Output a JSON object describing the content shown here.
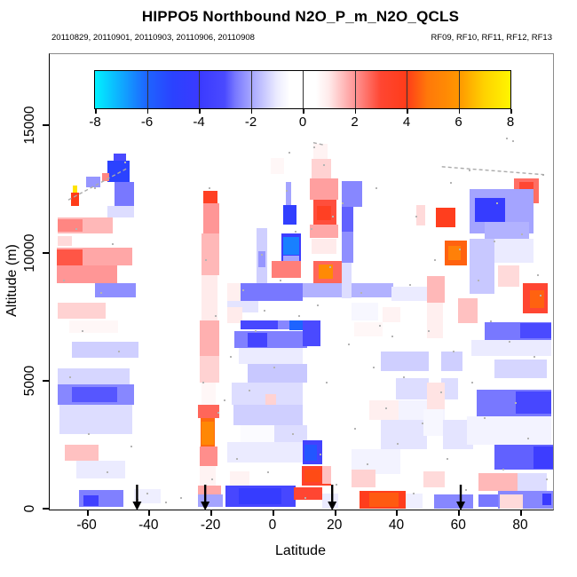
{
  "title": "HIPPO5 Northbound N2O_P_m_N2O_QCLS",
  "subtitle_left": "20110829, 20110901, 20110903, 20110906, 20110908",
  "subtitle_right": "RF09, RF10, RF11, RF12, RF13",
  "axes": {
    "x": {
      "label": "Latitude",
      "ticks": [
        -60,
        -40,
        -20,
        0,
        20,
        40,
        60,
        80
      ],
      "range": [
        -72.2,
        90.3
      ]
    },
    "y": {
      "label": "Altitude (m)",
      "ticks": [
        0,
        5000,
        10000,
        15000
      ],
      "range": [
        0,
        17800
      ]
    }
  },
  "colorbar": {
    "ticks": [
      -8,
      -6,
      -4,
      -2,
      0,
      2,
      4,
      6,
      8
    ],
    "range": [
      -8,
      8
    ],
    "value_stops": [
      [
        -8,
        "#00F2FF"
      ],
      [
        -6,
        "#1E64FF"
      ],
      [
        -5,
        "#2B42FF"
      ],
      [
        -4,
        "#3A3AFF"
      ],
      [
        -3,
        "#4A4AFF"
      ],
      [
        -2.6,
        "#7878FF"
      ],
      [
        -2.2,
        "#9696FF"
      ],
      [
        -1,
        "#EBEBFF"
      ],
      [
        -0.5,
        "#FFFFFF"
      ],
      [
        0.5,
        "#FFFFFF"
      ],
      [
        1,
        "#FFEBEB"
      ],
      [
        2,
        "#FF9696"
      ],
      [
        2.5,
        "#FF6E64"
      ],
      [
        3,
        "#FF4632"
      ],
      [
        4,
        "#FF3C19"
      ],
      [
        4.8,
        "#FF780A"
      ],
      [
        6,
        "#FF9600"
      ],
      [
        7,
        "#FFD200"
      ],
      [
        8,
        "#FFF500"
      ]
    ]
  },
  "chart_data": {
    "type": "heatmap",
    "title": "HIPPO5 Northbound N2O_P_m_N2O_QCLS",
    "xlabel": "Latitude",
    "ylabel": "Altitude (m)",
    "value_scale": [
      -8,
      8
    ],
    "arrows_lat": [
      -44,
      -22,
      19,
      60.5
    ],
    "track_lines": [
      [
        -66.2,
        12100,
        -47.3,
        13330
      ],
      [
        54.4,
        13400,
        87.4,
        13090
      ],
      [
        12.9,
        14340,
        16.6,
        14240
      ]
    ],
    "cells": [
      [
        -53.6,
        -46.4,
        12800,
        13650,
        -5
      ],
      [
        -51.5,
        -47.5,
        13650,
        13900,
        -3
      ],
      [
        -60.5,
        -55.9,
        12600,
        13000,
        -2.2
      ],
      [
        -55.3,
        -53,
        12850,
        13150,
        2.2
      ],
      [
        -64.8,
        -63.3,
        12400,
        12670,
        7.5
      ],
      [
        -65.3,
        -62.8,
        11850,
        12400,
        4
      ],
      [
        -51.3,
        -45,
        11850,
        12800,
        -2.6
      ],
      [
        -53.6,
        -45,
        11400,
        11850,
        -1.2
      ],
      [
        -69.6,
        -51.9,
        10800,
        11400,
        1.6
      ],
      [
        -69.6,
        -61.5,
        10850,
        11350,
        2.2
      ],
      [
        -69.6,
        -65,
        10300,
        10700,
        1.2
      ],
      [
        -70,
        -45.6,
        9550,
        10250,
        1.8
      ],
      [
        -70,
        -61.5,
        9100,
        10150,
        2.8
      ],
      [
        -70,
        -50.5,
        8850,
        9550,
        2
      ],
      [
        -57.6,
        -44.4,
        8300,
        8850,
        -2.3
      ],
      [
        -69.6,
        -54.2,
        7450,
        8100,
        1.3
      ],
      [
        -66,
        -50,
        6900,
        7400,
        0.7
      ],
      [
        -65,
        -43.5,
        5950,
        6550,
        -1.4
      ],
      [
        -69.6,
        -46.5,
        4900,
        5500,
        -1.3
      ],
      [
        -69.6,
        -45,
        4100,
        4900,
        -2.4
      ],
      [
        -65,
        -50.5,
        4200,
        4800,
        -2.9
      ],
      [
        -69,
        -45.6,
        2950,
        4100,
        -1.2
      ],
      [
        -67.3,
        -56.4,
        1900,
        2550,
        1.5
      ],
      [
        -63.6,
        -47.9,
        1200,
        1900,
        -1
      ],
      [
        -62.8,
        -48.4,
        100,
        750,
        -2.5
      ],
      [
        -61.3,
        -56.4,
        150,
        550,
        -3.6
      ],
      [
        -45,
        -36.5,
        250,
        800,
        -0.9
      ],
      [
        -22.6,
        -18,
        11980,
        12470,
        3.6
      ],
      [
        -22.6,
        -17.5,
        10800,
        11980,
        2
      ],
      [
        -23.2,
        -17.5,
        9150,
        10800,
        1.6
      ],
      [
        -23.2,
        -18.1,
        7400,
        9150,
        1
      ],
      [
        -23.8,
        -17.5,
        6000,
        7400,
        1.7
      ],
      [
        -23.8,
        -17.5,
        4950,
        6000,
        1.3
      ],
      [
        -23.2,
        -18.6,
        4100,
        4950,
        0.7
      ],
      [
        -24.4,
        -17.5,
        3580,
        4100,
        2.6
      ],
      [
        -23.5,
        -18.9,
        2470,
        3580,
        4.6
      ],
      [
        -23.2,
        -19.2,
        2550,
        3430,
        5.4
      ],
      [
        -23.8,
        -18.1,
        1700,
        2470,
        2.1
      ],
      [
        -23.8,
        -18.6,
        950,
        1700,
        0.8
      ],
      [
        -24.4,
        -16.9,
        600,
        950,
        1.8
      ],
      [
        -24.4,
        -16.3,
        100,
        600,
        -2
      ],
      [
        -0.9,
        3.5,
        13100,
        13750,
        0.7
      ],
      [
        4,
        5.8,
        11900,
        12800,
        -2
      ],
      [
        3.2,
        7.4,
        11150,
        11900,
        -4.6
      ],
      [
        2.6,
        8.9,
        9550,
        10800,
        -3.8
      ],
      [
        3.2,
        8.3,
        9950,
        10650,
        -6.4
      ],
      [
        3.2,
        8.3,
        9650,
        9930,
        -2
      ],
      [
        -5.4,
        -2,
        8700,
        11000,
        -1.4
      ],
      [
        -4.9,
        -2.6,
        9480,
        10100,
        -2.2
      ],
      [
        -0.6,
        8.9,
        9060,
        9720,
        2.3
      ],
      [
        -14.9,
        -10.6,
        8160,
        8860,
        0.9
      ],
      [
        -10.6,
        9.5,
        8160,
        8860,
        -2.6
      ],
      [
        9.5,
        38.7,
        8300,
        8860,
        -1.8
      ],
      [
        -14.9,
        -4.9,
        7700,
        8160,
        -1.1
      ],
      [
        -14.9,
        -10,
        7300,
        7900,
        1
      ],
      [
        -10.6,
        1.4,
        7050,
        7400,
        -3.2
      ],
      [
        1.4,
        5.2,
        7050,
        7400,
        -2.4
      ],
      [
        5.2,
        10,
        7020,
        7400,
        -6
      ],
      [
        -12.6,
        10.9,
        6300,
        6980,
        -2.5
      ],
      [
        -8.3,
        -2,
        6350,
        6900,
        -3.4
      ],
      [
        -11.2,
        9.5,
        5700,
        6300,
        -1
      ],
      [
        -8.3,
        10.9,
        4950,
        5700,
        -1.5
      ],
      [
        -13.5,
        9.5,
        4100,
        4950,
        -1.2
      ],
      [
        -2.6,
        0.9,
        3600,
        4500,
        1.3
      ],
      [
        -12.9,
        9.5,
        3300,
        4100,
        -1.4
      ],
      [
        -10.6,
        10.9,
        2650,
        3300,
        -0.6
      ],
      [
        0.3,
        10.9,
        2650,
        3300,
        -1.2
      ],
      [
        -14.9,
        9.5,
        1850,
        2650,
        -1
      ],
      [
        -14,
        -7.7,
        950,
        1500,
        0.8
      ],
      [
        -15.5,
        7.2,
        100,
        950,
        -3.2
      ],
      [
        -11.2,
        2.6,
        200,
        850,
        -4.3
      ],
      [
        12.9,
        17.5,
        13700,
        14300,
        0.8
      ],
      [
        12.3,
        18.6,
        12950,
        13700,
        1.3
      ],
      [
        11.7,
        20.9,
        12100,
        12950,
        1.9
      ],
      [
        12.9,
        20.3,
        11150,
        12100,
        2.9
      ],
      [
        14,
        18.6,
        11300,
        11850,
        3.6
      ],
      [
        11.7,
        20.9,
        10600,
        11150,
        1.8
      ],
      [
        12.3,
        20.3,
        10000,
        10600,
        1
      ],
      [
        12.9,
        22.3,
        8860,
        9720,
        2.6
      ],
      [
        14.6,
        19.2,
        9030,
        9580,
        5.5
      ],
      [
        9.5,
        15.2,
        6400,
        7400,
        -3
      ],
      [
        9.5,
        15.8,
        1770,
        2700,
        -3.5
      ],
      [
        10,
        14,
        1900,
        2550,
        -5.6
      ],
      [
        9.2,
        18.6,
        940,
        1700,
        3.3
      ],
      [
        10,
        15.2,
        1080,
        1560,
        4.2
      ],
      [
        15.8,
        18.6,
        1000,
        1700,
        1.5
      ],
      [
        6.6,
        15.8,
        380,
        870,
        3
      ],
      [
        15.8,
        20.9,
        50,
        620,
        -1
      ],
      [
        22.1,
        28.7,
        11840,
        12850,
        -2.4
      ],
      [
        22.1,
        25.8,
        10850,
        11840,
        -2.8
      ],
      [
        22.1,
        25.8,
        9650,
        10850,
        -2.3
      ],
      [
        22.1,
        25.2,
        8250,
        9650,
        -1.2
      ],
      [
        38.1,
        49.6,
        8160,
        8720,
        -1
      ],
      [
        25.2,
        33.8,
        7400,
        8100,
        -0.7
      ],
      [
        35.2,
        41,
        7320,
        7900,
        0.8
      ],
      [
        26.1,
        35.2,
        6770,
        7320,
        0.7
      ],
      [
        34.7,
        61,
        5400,
        6180,
        -1.4
      ],
      [
        39.5,
        59.6,
        4300,
        5150,
        -1.2
      ],
      [
        30.9,
        40.4,
        3500,
        4270,
        0.9
      ],
      [
        40.4,
        55.3,
        3500,
        4270,
        -0.8
      ],
      [
        34.7,
        64.5,
        2350,
        3500,
        -1.1
      ],
      [
        25.2,
        41,
        1400,
        2350,
        -0.8
      ],
      [
        25.2,
        33,
        870,
        1560,
        1.3
      ],
      [
        27.8,
        42.7,
        50,
        730,
        3.9
      ],
      [
        30.9,
        40.4,
        100,
        650,
        4.4
      ],
      [
        42.7,
        48.1,
        50,
        620,
        -0.9
      ],
      [
        52.4,
        58.7,
        11040,
        11800,
        3.8
      ],
      [
        55.3,
        62.5,
        9550,
        10520,
        4.5
      ],
      [
        56.4,
        60.5,
        9760,
        10310,
        5.1
      ],
      [
        46.1,
        49,
        11100,
        11900,
        1.2
      ],
      [
        49.6,
        55.3,
        8090,
        9130,
        1.6
      ],
      [
        49.6,
        54.7,
        6700,
        8090,
        0.9
      ],
      [
        50.1,
        54.2,
        4950,
        6700,
        0.5
      ],
      [
        49.6,
        55.3,
        3925,
        4950,
        1.1
      ],
      [
        48.4,
        54.7,
        2880,
        3925,
        -0.7
      ],
      [
        49.6,
        54.7,
        1500,
        2880,
        0.4
      ],
      [
        48.4,
        55.3,
        870,
        1500,
        1.2
      ],
      [
        51.9,
        64.5,
        50,
        590,
        -2.4
      ],
      [
        66.2,
        72.5,
        100,
        590,
        -2.6
      ],
      [
        77.7,
        85.7,
        11980,
        12950,
        2.5
      ],
      [
        79.4,
        84,
        12180,
        12800,
        3
      ],
      [
        63.3,
        84,
        10800,
        12530,
        -2
      ],
      [
        65,
        74.8,
        11230,
        12190,
        -4.3
      ],
      [
        68.2,
        82.5,
        10590,
        11230,
        -1.8
      ],
      [
        63.3,
        71.3,
        8440,
        10590,
        -1.5
      ],
      [
        71.3,
        84,
        9650,
        10590,
        -1
      ],
      [
        72.5,
        79.4,
        8720,
        9550,
        1.2
      ],
      [
        80.5,
        88.5,
        7670,
        8860,
        3
      ],
      [
        82.8,
        87.4,
        7880,
        8580,
        4.5
      ],
      [
        59.6,
        65.9,
        7290,
        8260,
        1.5
      ],
      [
        68.2,
        89.7,
        6630,
        7330,
        -2.6
      ],
      [
        79.7,
        89.7,
        6700,
        7290,
        -3
      ],
      [
        63.9,
        89.7,
        6000,
        6630,
        -1
      ],
      [
        71.3,
        88.3,
        5140,
        5870,
        -1.3
      ],
      [
        65.6,
        89.7,
        3650,
        4690,
        -2.6
      ],
      [
        78.2,
        89.7,
        3750,
        4620,
        -3.2
      ],
      [
        62.5,
        89.7,
        2530,
        3650,
        -0.8
      ],
      [
        71.3,
        90.3,
        1560,
        2530,
        -2.8
      ],
      [
        84,
        90.3,
        1600,
        2460,
        -3.8
      ],
      [
        66.2,
        78.8,
        730,
        1420,
        1.6
      ],
      [
        78.8,
        88.3,
        730,
        1420,
        -1.2
      ],
      [
        72.5,
        90.3,
        35,
        730,
        -2.4
      ],
      [
        73.1,
        80.5,
        35,
        590,
        1.2
      ],
      [
        86.8,
        89.7,
        170,
        630,
        -4
      ]
    ],
    "speckles": [
      [
        -68,
        9000
      ],
      [
        -66,
        5200
      ],
      [
        -64,
        11000
      ],
      [
        -62,
        7000
      ],
      [
        -60,
        3000
      ],
      [
        -58,
        12600
      ],
      [
        -56,
        8500
      ],
      [
        -54,
        1500
      ],
      [
        -52,
        10400
      ],
      [
        -50,
        6200
      ],
      [
        -48,
        13600
      ],
      [
        -46,
        2500
      ],
      [
        -44,
        400
      ],
      [
        -41,
        660
      ],
      [
        -35,
        300
      ],
      [
        -30,
        500
      ],
      [
        -23,
        5000
      ],
      [
        -22,
        9800
      ],
      [
        -21,
        12600
      ],
      [
        -20,
        1200
      ],
      [
        -19,
        7600
      ],
      [
        -18,
        3800
      ],
      [
        -16,
        4300
      ],
      [
        -14,
        6000
      ],
      [
        -12,
        2000
      ],
      [
        -10,
        8600
      ],
      [
        -8,
        4700
      ],
      [
        -6,
        7000
      ],
      [
        -4,
        10000
      ],
      [
        -3,
        7800
      ],
      [
        -2,
        1500
      ],
      [
        0,
        5600
      ],
      [
        2,
        9000
      ],
      [
        4,
        12500
      ],
      [
        5,
        14000
      ],
      [
        6,
        3000
      ],
      [
        7,
        10900
      ],
      [
        8,
        7600
      ],
      [
        10,
        500
      ],
      [
        12,
        11000
      ],
      [
        13,
        14200
      ],
      [
        14,
        8000
      ],
      [
        15,
        2200
      ],
      [
        16,
        13500
      ],
      [
        17,
        5000
      ],
      [
        18,
        9500
      ],
      [
        19,
        11500
      ],
      [
        20,
        1000
      ],
      [
        22,
        12000
      ],
      [
        24,
        6500
      ],
      [
        26,
        3200
      ],
      [
        28,
        8500
      ],
      [
        30,
        1800
      ],
      [
        32,
        5600
      ],
      [
        33,
        12600
      ],
      [
        34,
        7200
      ],
      [
        36,
        4000
      ],
      [
        38,
        6800
      ],
      [
        40,
        2600
      ],
      [
        42,
        5200
      ],
      [
        44,
        8800
      ],
      [
        45,
        660
      ],
      [
        46,
        11500
      ],
      [
        48,
        3400
      ],
      [
        50,
        7000
      ],
      [
        52,
        9800
      ],
      [
        54,
        4600
      ],
      [
        56,
        2000
      ],
      [
        57,
        12800
      ],
      [
        58,
        6200
      ],
      [
        60,
        10200
      ],
      [
        62,
        800
      ],
      [
        63,
        13300
      ],
      [
        64,
        5000
      ],
      [
        66,
        9000
      ],
      [
        68,
        3600
      ],
      [
        70,
        7400
      ],
      [
        71,
        10500
      ],
      [
        72,
        12000
      ],
      [
        74,
        1600
      ],
      [
        75,
        14550
      ],
      [
        76,
        6600
      ],
      [
        77,
        14450
      ],
      [
        78,
        4200
      ],
      [
        80,
        10800
      ],
      [
        82,
        2800
      ],
      [
        84,
        6000
      ],
      [
        85,
        9200
      ],
      [
        86,
        8400
      ],
      [
        87,
        13100
      ],
      [
        88,
        1200
      ]
    ]
  }
}
